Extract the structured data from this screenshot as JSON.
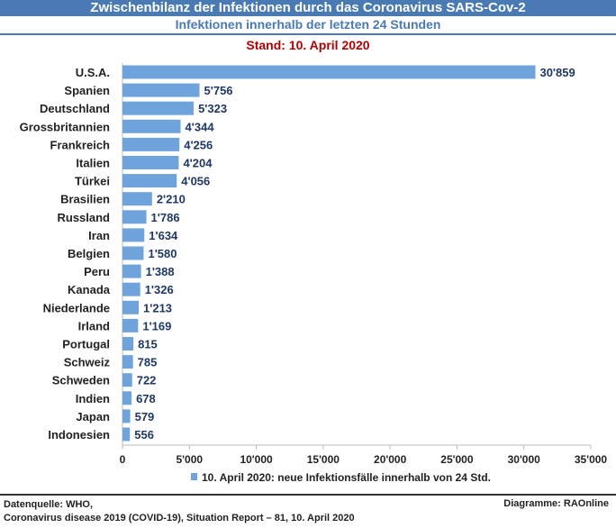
{
  "header": {
    "title": "Zwischenbilanz der  Infektionen durch das Coronavirus SARS-Cov-2",
    "subtitle": "Infektionen innerhalb der letzten 24 Stunden",
    "stand": "Stand: 10. April 2020"
  },
  "chart_data": {
    "type": "bar",
    "orientation": "horizontal",
    "categories": [
      "U.S.A.",
      "Spanien",
      "Deutschland",
      "Grossbritannien",
      "Frankreich",
      "Italien",
      "Türkei",
      "Brasilien",
      "Russland",
      "Iran",
      "Belgien",
      "Peru",
      "Kanada",
      "Niederlande",
      "Irland",
      "Portugal",
      "Schweiz",
      "Schweden",
      "Indien",
      "Japan",
      "Indonesien"
    ],
    "values": [
      30859,
      5756,
      5323,
      4344,
      4256,
      4204,
      4056,
      2210,
      1786,
      1634,
      1580,
      1388,
      1326,
      1213,
      1169,
      815,
      785,
      722,
      678,
      579,
      556
    ],
    "labels": [
      "30'859",
      "5'756",
      "5'323",
      "4'344",
      "4'256",
      "4'204",
      "4'056",
      "2'210",
      "1'786",
      "1'634",
      "1'580",
      "1'388",
      "1'326",
      "1'213",
      "1'169",
      "815",
      "785",
      "722",
      "678",
      "579",
      "556"
    ],
    "xlim": [
      0,
      35000
    ],
    "xticks": [
      "0",
      "5'000",
      "10'000",
      "15'000",
      "20'000",
      "25'000",
      "30'000",
      "35'000"
    ],
    "legend": "10. April 2020: neue Infektionsfälle innerhalb von 24 Std.",
    "legend_position": "bottom",
    "bar_color": "#6fa3dc",
    "label_color": "#1f3864"
  },
  "footer": {
    "source1": "Datenquelle: WHO,",
    "source2": "Coronavirus disease 2019 (COVID-19), Situation Report – 81, 10. April 2020",
    "credit": "Diagramme: RAOnline"
  }
}
